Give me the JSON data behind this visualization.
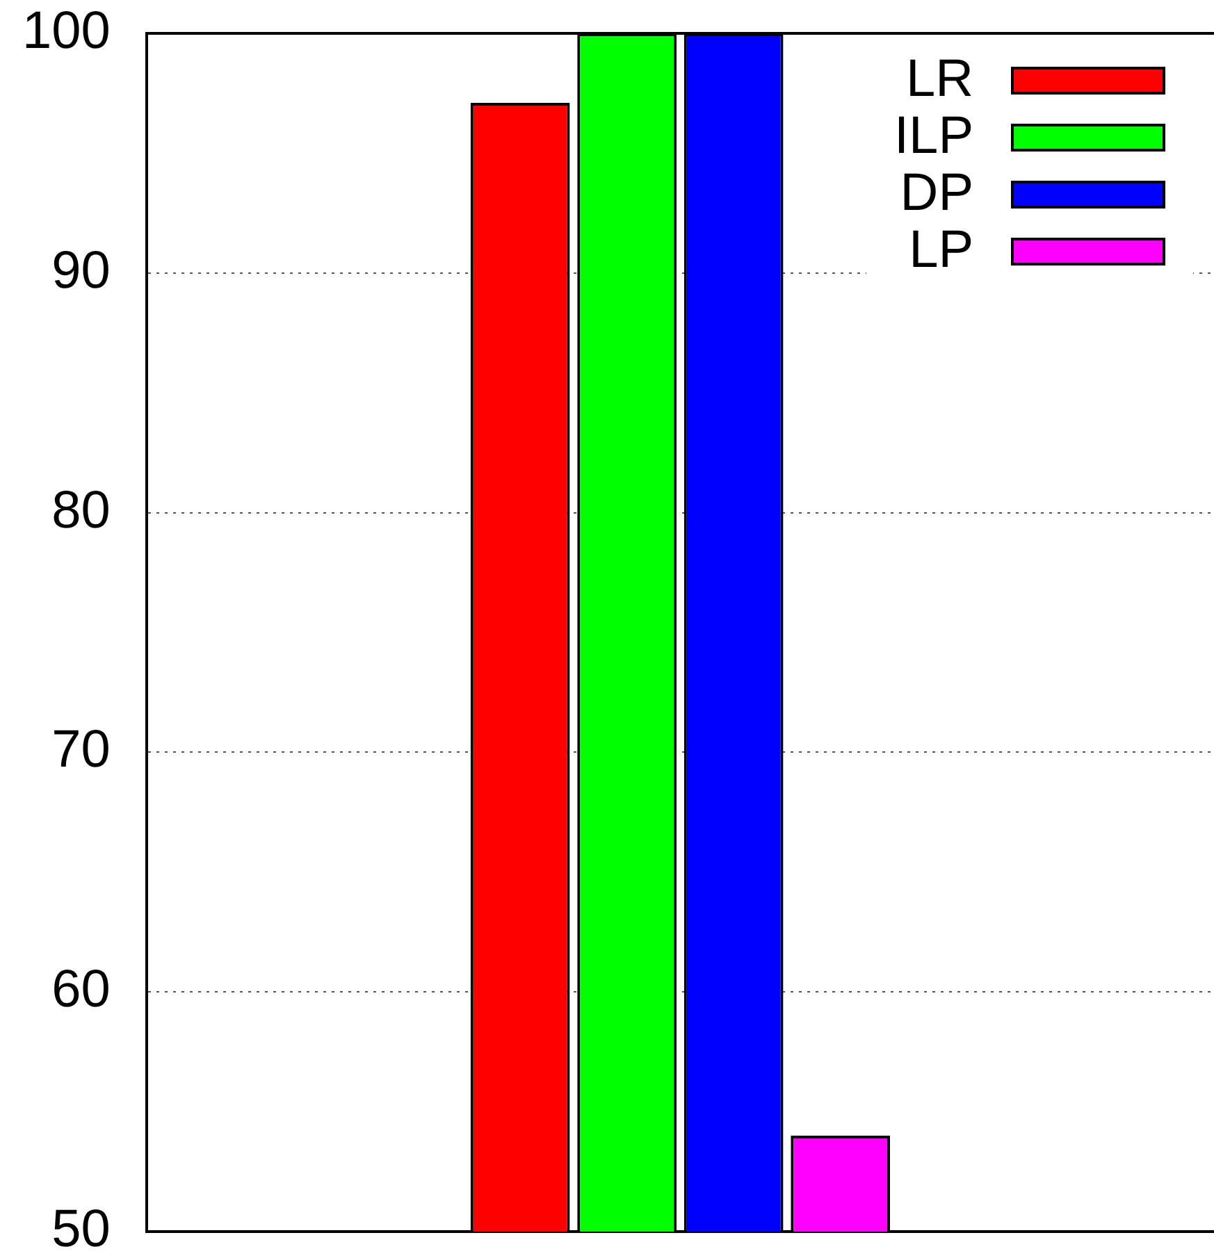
{
  "chart_data": {
    "type": "bar",
    "categories": [
      null
    ],
    "series": [
      {
        "name": "LR",
        "color": "#ff0000",
        "values": [
          97.1
        ]
      },
      {
        "name": "ILP",
        "color": "#00ff00",
        "values": [
          100
        ]
      },
      {
        "name": "DP",
        "color": "#0000ff",
        "values": [
          100
        ]
      },
      {
        "name": "LP",
        "color": "#ff00ff",
        "values": [
          54
        ]
      }
    ],
    "ylim": [
      50,
      100
    ],
    "yticks": [
      50,
      60,
      70,
      80,
      90,
      100
    ],
    "grid": "y",
    "legend": "top right",
    "tick_labels": "y"
  }
}
